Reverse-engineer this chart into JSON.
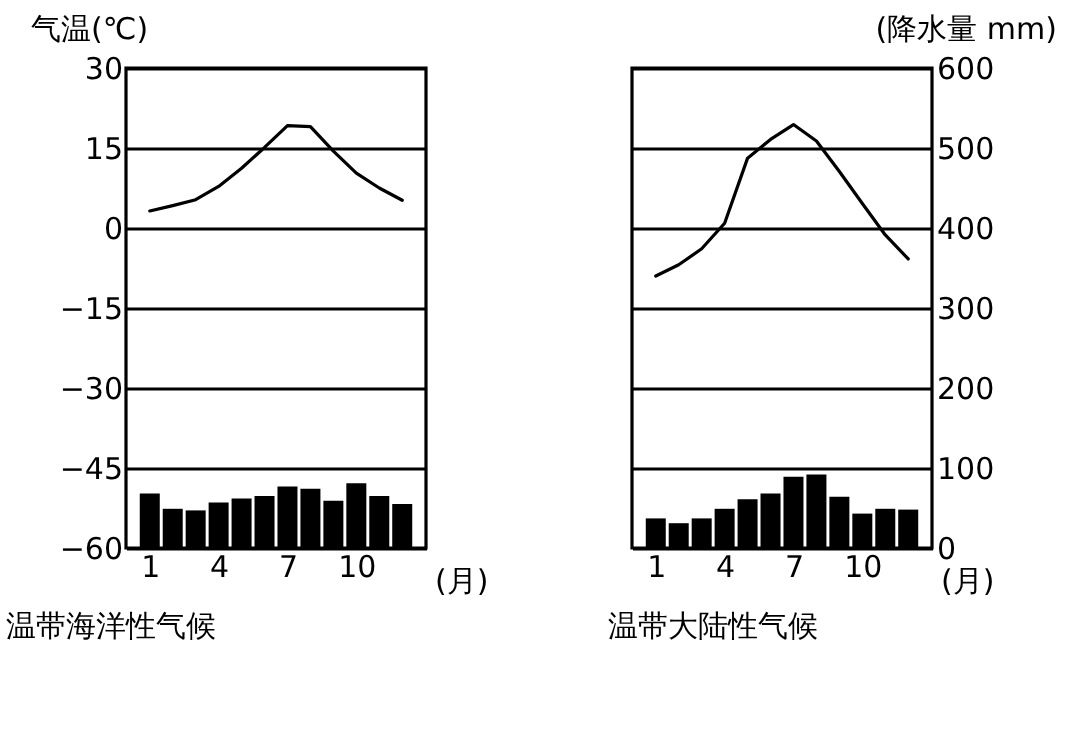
{
  "chart_data": [
    {
      "type": "bar",
      "title": "温带海洋性气候",
      "ylabel": "气温(℃)",
      "xlabel": "(月)",
      "x": [
        1,
        2,
        3,
        4,
        5,
        6,
        7,
        8,
        9,
        10,
        11,
        12
      ],
      "xlim": [
        0.4,
        12.6
      ],
      "xticks": [
        1,
        4,
        7,
        10
      ],
      "ylim": [
        -60,
        30
      ],
      "yticks": [
        -60,
        -45,
        -30,
        -15,
        0,
        15,
        30
      ],
      "y2lim": [
        0,
        600
      ],
      "grid": "y",
      "tick_labels": [
        "x",
        "y"
      ],
      "series": [
        {
          "type": "line",
          "axis": "y",
          "color": "#000000",
          "values": [
            3.2,
            4.2,
            5.3,
            7.8,
            11.2,
            15.1,
            19.2,
            19.0,
            14.4,
            10.3,
            7.5,
            5.2
          ]
        },
        {
          "axis": "y2",
          "color": "#000000",
          "values": [
            68,
            49,
            47,
            57,
            62,
            65,
            77,
            74,
            59,
            81,
            65,
            55
          ]
        }
      ]
    },
    {
      "type": "bar",
      "title": "温带大陆性气候",
      "y2label": "(降水量 mm)",
      "xlabel": "(月)",
      "x": [
        1,
        2,
        3,
        4,
        5,
        6,
        7,
        8,
        9,
        10,
        11,
        12
      ],
      "xlim": [
        0.4,
        12.6
      ],
      "xticks": [
        1,
        4,
        7,
        10
      ],
      "ylim": [
        -60,
        30
      ],
      "y2lim": [
        0,
        600
      ],
      "y2ticks": [
        0,
        100,
        200,
        300,
        400,
        500,
        600
      ],
      "grid": "y2",
      "tick_labels": [
        "x",
        "y2"
      ],
      "series": [
        {
          "type": "line",
          "axis": "y",
          "color": "#000000",
          "values": [
            -9.0,
            -6.9,
            -3.9,
            0.9,
            13.1,
            16.6,
            19.4,
            16.3,
            10.6,
            4.6,
            -1.3,
            -5.8
          ]
        },
        {
          "axis": "y2",
          "color": "#000000",
          "values": [
            37,
            31,
            37,
            49,
            61,
            68,
            89,
            92,
            64,
            43,
            49,
            48
          ]
        }
      ]
    }
  ]
}
